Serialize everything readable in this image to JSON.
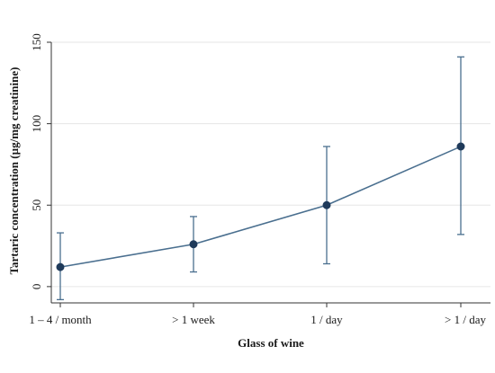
{
  "chart_data": {
    "type": "line",
    "title": "",
    "xlabel": "Glass of wine",
    "ylabel": "Tartaric concentration (µg/mg creatinine)",
    "categories": [
      "1 – 4 / month",
      "> 1 week",
      "1 / day",
      "> 1 / day"
    ],
    "series": [
      {
        "values": [
          12,
          26,
          50,
          86
        ],
        "error_low": [
          -8,
          9,
          14,
          32
        ],
        "error_high": [
          33,
          43,
          86,
          141
        ]
      }
    ],
    "ylim": [
      -10,
      150
    ],
    "yticks": [
      0,
      50,
      100,
      150
    ],
    "grid": true,
    "legend": "none",
    "colors": {
      "line": "#4a6f8f",
      "marker": "#1f3a5a",
      "grid": "#e6e6e6",
      "axis": "#333333"
    }
  }
}
